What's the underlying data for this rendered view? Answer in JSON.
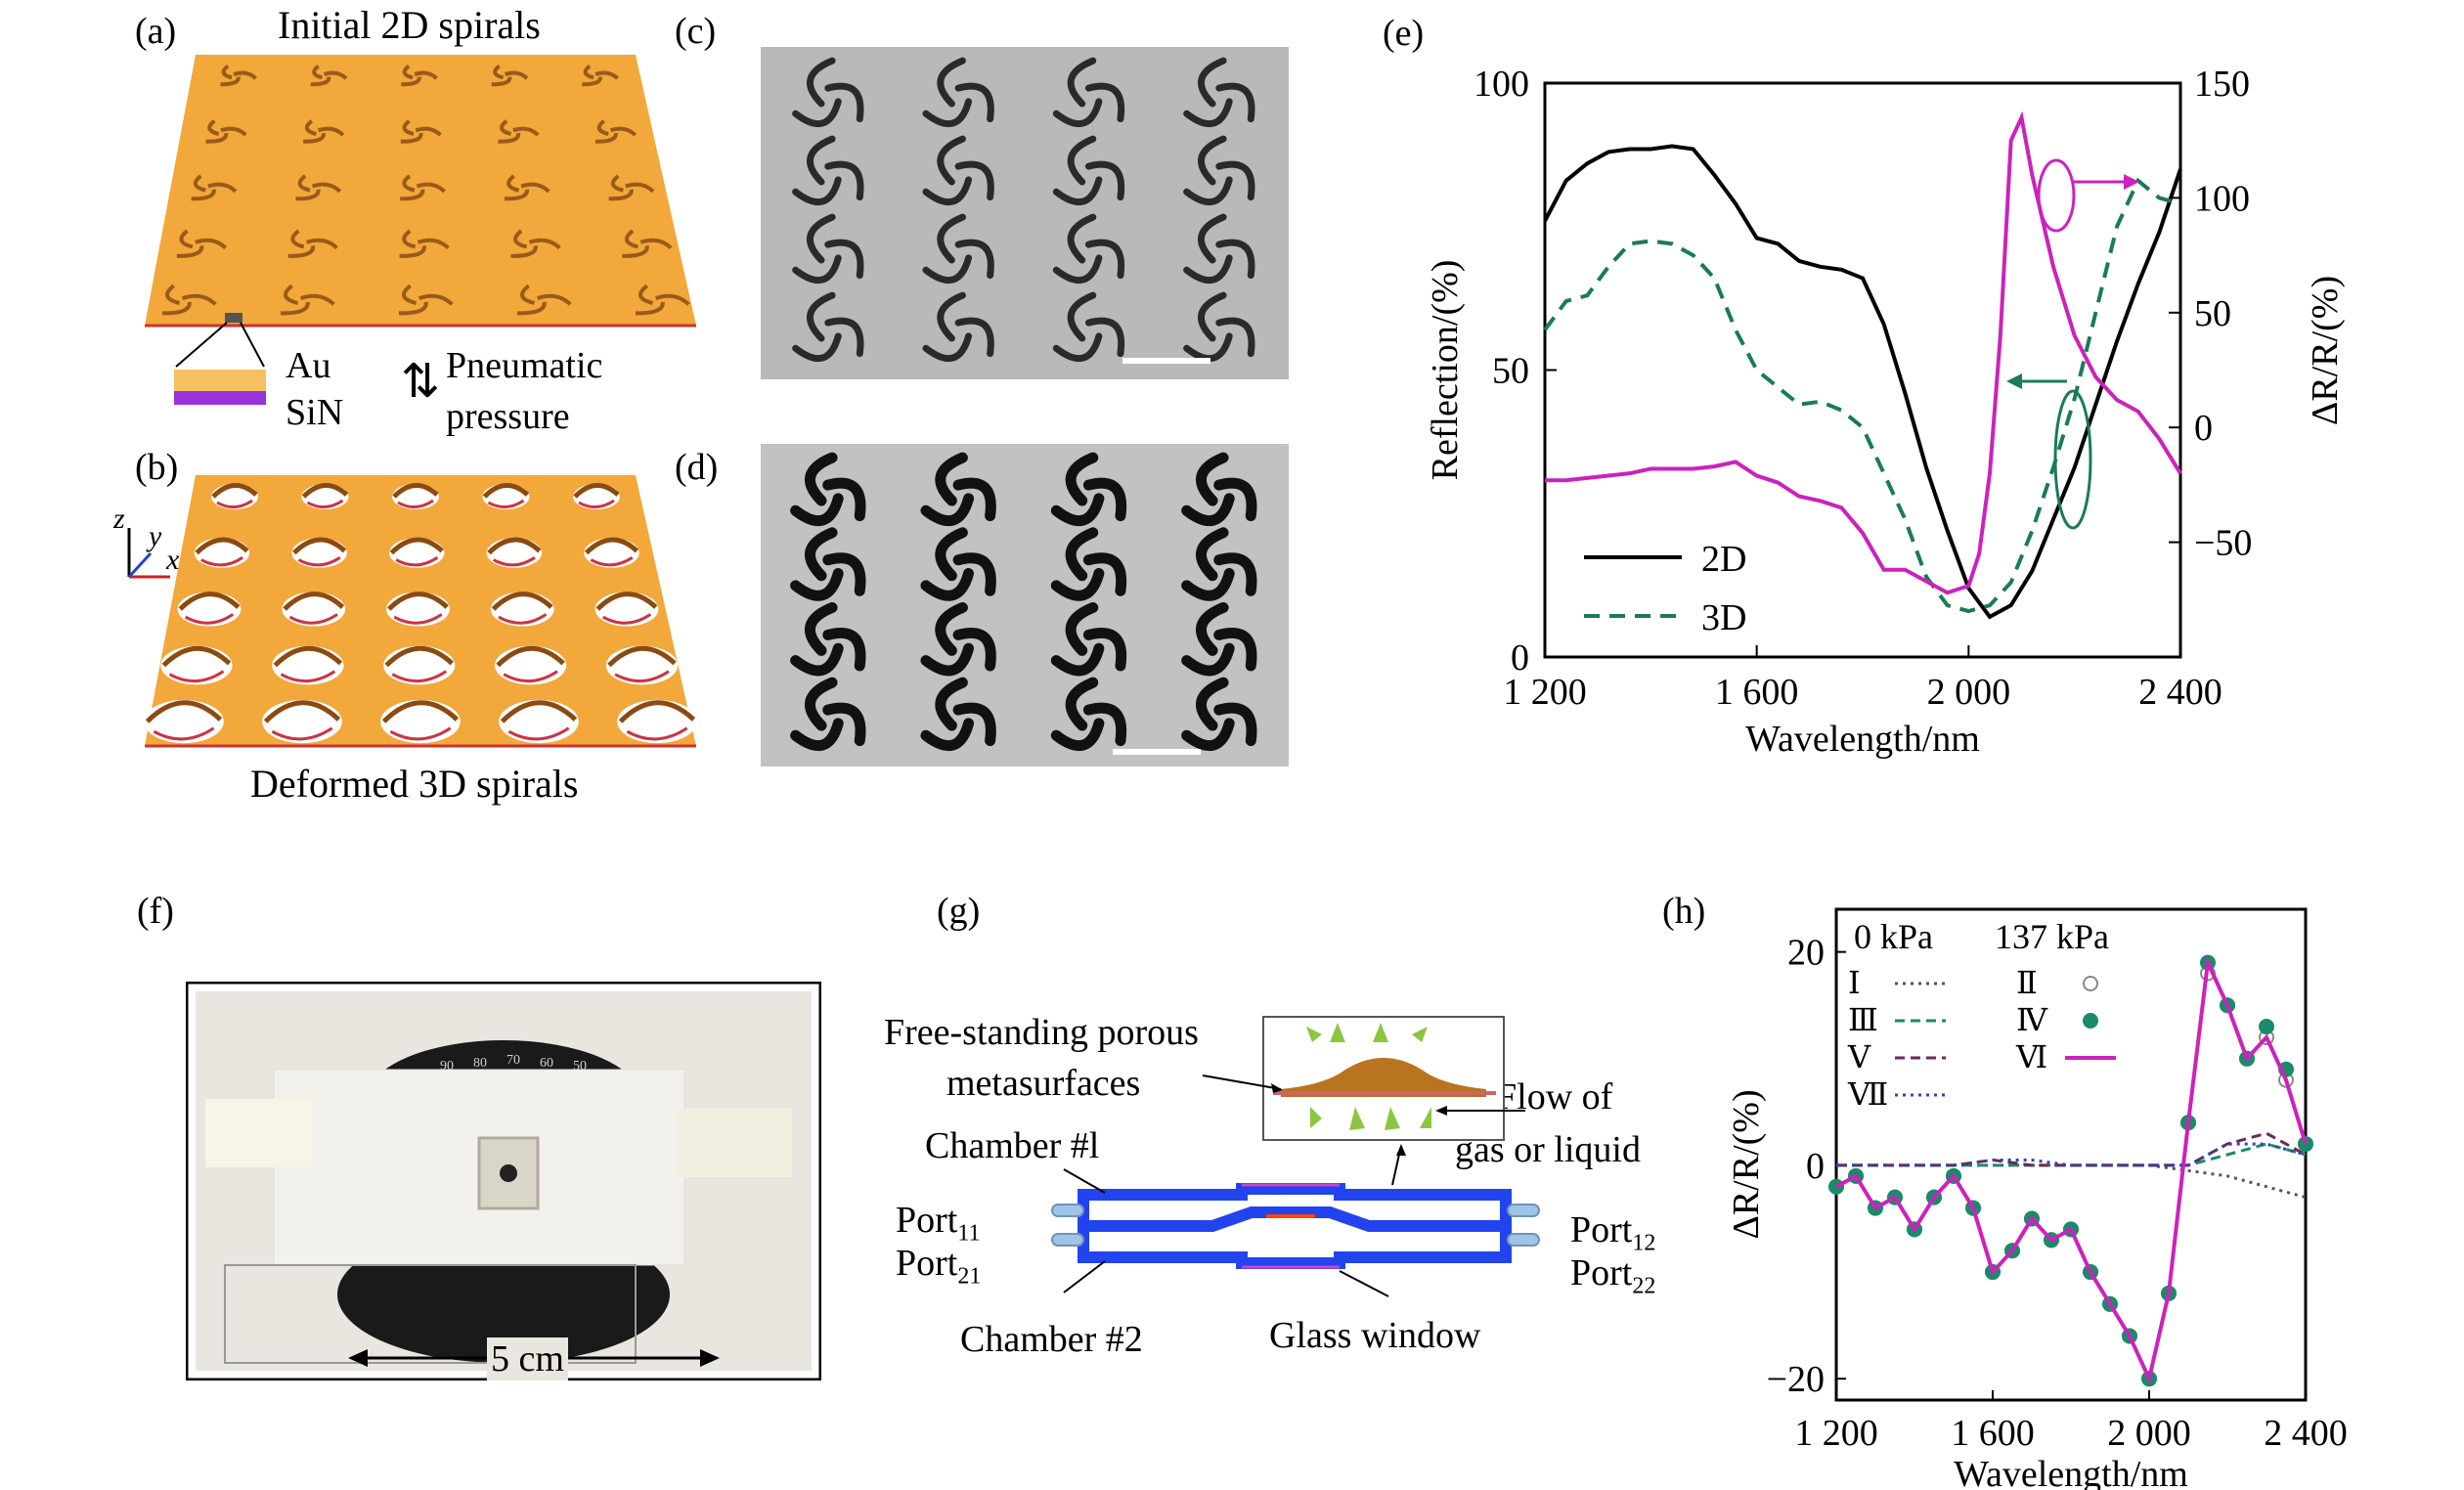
{
  "panels": {
    "a": {
      "label": "(a)",
      "title": "Initial 2D spirals",
      "layer_top": "Au",
      "layer_bottom": "SiN",
      "arrow_label_1": "Pneumatic",
      "arrow_label_2": "pressure"
    },
    "b": {
      "label": "(b)",
      "title": "Deformed 3D spirals",
      "axes": {
        "z": "z",
        "y": "y",
        "x": "x"
      }
    },
    "c": {
      "label": "(c)"
    },
    "d": {
      "label": "(d)"
    },
    "e": {
      "label": "(e)"
    },
    "f": {
      "label": "(f)",
      "scale_text": "5 cm",
      "dial_marks": [
        "90",
        "80",
        "70",
        "60",
        "50"
      ]
    },
    "g": {
      "label": "(g)",
      "free_standing_1": "Free-standing porous",
      "free_standing_2": "metasurfaces",
      "flow_1": "Flow of",
      "flow_2": "gas or liquid",
      "chamber1": "Chamber #l",
      "chamber2": "Chamber #2",
      "glass": "Glass window",
      "port11": "Port",
      "port11_sub": "11",
      "port21": "Port",
      "port21_sub": "21",
      "port12": "Port",
      "port12_sub": "12",
      "port22": "Port",
      "port22_sub": "22"
    },
    "h": {
      "label": "(h)"
    }
  },
  "chart_data": [
    {
      "type": "line",
      "panel": "e",
      "xlabel": "Wavelength/nm",
      "ylabel": "Reflection/(%)",
      "ylabel2": "ΔR/R/(%)",
      "xlim": [
        1200,
        2400
      ],
      "ylim": [
        0,
        100
      ],
      "ylim2": [
        -100,
        150
      ],
      "xticks": [
        "1 200",
        "1 600",
        "2 000",
        "2 400"
      ],
      "yticks": [
        "0",
        "50",
        "100"
      ],
      "yticks2": [
        "−50",
        "0",
        "50",
        "100",
        "150"
      ],
      "series": [
        {
          "name": "2D",
          "axis": "left",
          "color": "#000000",
          "style": "solid",
          "x": [
            1200,
            1240,
            1280,
            1320,
            1360,
            1400,
            1440,
            1480,
            1520,
            1560,
            1600,
            1640,
            1680,
            1720,
            1760,
            1800,
            1840,
            1880,
            1920,
            1960,
            2000,
            2040,
            2080,
            2120,
            2160,
            2200,
            2240,
            2280,
            2320,
            2360,
            2400
          ],
          "y": [
            76,
            83,
            86,
            88,
            88.5,
            88.5,
            89,
            88.5,
            84,
            79,
            73,
            72,
            69,
            68,
            67.5,
            66,
            58,
            46,
            33,
            22,
            12,
            7,
            9,
            15,
            24,
            33,
            44,
            55,
            65,
            74,
            85
          ]
        },
        {
          "name": "3D",
          "axis": "left",
          "color": "#1a7a5a",
          "style": "dashed",
          "x": [
            1200,
            1240,
            1280,
            1320,
            1360,
            1400,
            1440,
            1480,
            1520,
            1560,
            1600,
            1640,
            1680,
            1720,
            1760,
            1800,
            1840,
            1880,
            1920,
            1960,
            2000,
            2040,
            2080,
            2120,
            2160,
            2200,
            2240,
            2280,
            2320,
            2360,
            2400
          ],
          "y": [
            57,
            62,
            63,
            68,
            72,
            72.5,
            72,
            70,
            66,
            57,
            50,
            47,
            44,
            44.5,
            43,
            40,
            32,
            24,
            14,
            9,
            8,
            9,
            13,
            22,
            33,
            45,
            60,
            75,
            83,
            80,
            79
          ]
        },
        {
          "name": "",
          "axis": "right",
          "color": "#cc22bb",
          "style": "solid",
          "x": [
            1200,
            1240,
            1280,
            1320,
            1360,
            1400,
            1440,
            1480,
            1520,
            1560,
            1600,
            1640,
            1680,
            1720,
            1760,
            1800,
            1840,
            1880,
            1920,
            1960,
            2000,
            2020,
            2040,
            2060,
            2080,
            2100,
            2120,
            2160,
            2200,
            2240,
            2280,
            2320,
            2360,
            2400
          ],
          "y": [
            -23,
            -23,
            -22,
            -21,
            -20,
            -18,
            -18,
            -18,
            -17,
            -15,
            -21,
            -24,
            -30,
            -32,
            -35,
            -46,
            -62,
            -62,
            -67,
            -72,
            -69,
            -55,
            -20,
            40,
            125,
            135,
            110,
            70,
            40,
            22,
            12,
            7,
            -5,
            -20
          ]
        }
      ],
      "legend": [
        "2D",
        "3D"
      ],
      "legend_position": "bottom-left"
    },
    {
      "type": "line",
      "panel": "h",
      "xlabel": "Wavelength/nm",
      "ylabel": "ΔR/R/(%)",
      "xlim": [
        1200,
        2400
      ],
      "ylim": [
        -22,
        24
      ],
      "xticks": [
        "1 200",
        "1 600",
        "2 000",
        "2 400"
      ],
      "yticks": [
        "−20",
        "0",
        "20"
      ],
      "legend_headers": [
        "0 kPa",
        "137 kPa"
      ],
      "series": [
        {
          "name": "Ⅰ",
          "color": "#555555",
          "style": "dotted",
          "x": [
            1200,
            1300,
            1400,
            1500,
            1600,
            1700,
            1800,
            1900,
            2000,
            2100,
            2200,
            2300,
            2400
          ],
          "y": [
            0,
            0,
            0,
            0,
            0,
            0,
            0,
            0,
            0,
            -0.5,
            -1,
            -2,
            -3
          ]
        },
        {
          "name": "Ⅱ",
          "color": "#888888",
          "style": "circles",
          "x": [
            1200,
            1250,
            1300,
            1350,
            1400,
            1450,
            1500,
            1550,
            1600,
            1650,
            1700,
            1750,
            1800,
            1850,
            1900,
            1950,
            2000,
            2050,
            2100,
            2150,
            2200,
            2250,
            2300,
            2350,
            2400
          ],
          "y": [
            -2,
            -1,
            -4,
            -3,
            -6,
            -3,
            -1,
            -4,
            -10,
            -8,
            -5,
            -7,
            -6,
            -10,
            -13,
            -16,
            -20,
            -12,
            4,
            18,
            15,
            10,
            12,
            8,
            2
          ]
        },
        {
          "name": "Ⅲ",
          "color": "#1a8a6a",
          "style": "dashed",
          "x": [
            1200,
            1300,
            1400,
            1500,
            1600,
            1700,
            1800,
            1900,
            2000,
            2100,
            2200,
            2300,
            2400
          ],
          "y": [
            0,
            0,
            0,
            0,
            0,
            0,
            0,
            0,
            0,
            0,
            1,
            2,
            1
          ]
        },
        {
          "name": "Ⅳ",
          "color": "#1a8a6a",
          "style": "filled-circles",
          "x": [
            1200,
            1250,
            1300,
            1350,
            1400,
            1450,
            1500,
            1550,
            1600,
            1650,
            1700,
            1750,
            1800,
            1850,
            1900,
            1950,
            2000,
            2050,
            2100,
            2150,
            2200,
            2250,
            2300,
            2350,
            2400
          ],
          "y": [
            -2,
            -1,
            -4,
            -3,
            -6,
            -3,
            -1,
            -4,
            -10,
            -8,
            -5,
            -7,
            -6,
            -10,
            -13,
            -16,
            -20,
            -12,
            4,
            19,
            15,
            10,
            13,
            9,
            2
          ]
        },
        {
          "name": "Ⅴ",
          "color": "#6a2a5a",
          "style": "dashed",
          "x": [
            1200,
            1300,
            1400,
            1500,
            1600,
            1700,
            1800,
            1900,
            2000,
            2100,
            2200,
            2300,
            2400
          ],
          "y": [
            0,
            0,
            0,
            0,
            0.5,
            0,
            0,
            0,
            0,
            0,
            2,
            3,
            1
          ]
        },
        {
          "name": "Ⅵ",
          "color": "#cc22bb",
          "style": "solid",
          "x": [
            1200,
            1250,
            1300,
            1350,
            1400,
            1450,
            1500,
            1550,
            1600,
            1650,
            1700,
            1750,
            1800,
            1850,
            1900,
            1950,
            2000,
            2050,
            2100,
            2150,
            2200,
            2250,
            2300,
            2350,
            2400
          ],
          "y": [
            -2,
            -1,
            -4,
            -3,
            -6,
            -3,
            -1,
            -4,
            -10,
            -8,
            -5,
            -7,
            -6,
            -10,
            -13,
            -16,
            -20,
            -12,
            4,
            19,
            15,
            10,
            12,
            8,
            2
          ]
        },
        {
          "name": "Ⅶ",
          "color": "#3344aa",
          "style": "dotted",
          "x": [
            1200,
            1300,
            1400,
            1500,
            1600,
            1700,
            1800,
            1900,
            2000,
            2100,
            2200,
            2300,
            2400
          ],
          "y": [
            0,
            0,
            0,
            0,
            0.5,
            0.5,
            0,
            0,
            0,
            0,
            2,
            2,
            1
          ]
        }
      ]
    }
  ]
}
